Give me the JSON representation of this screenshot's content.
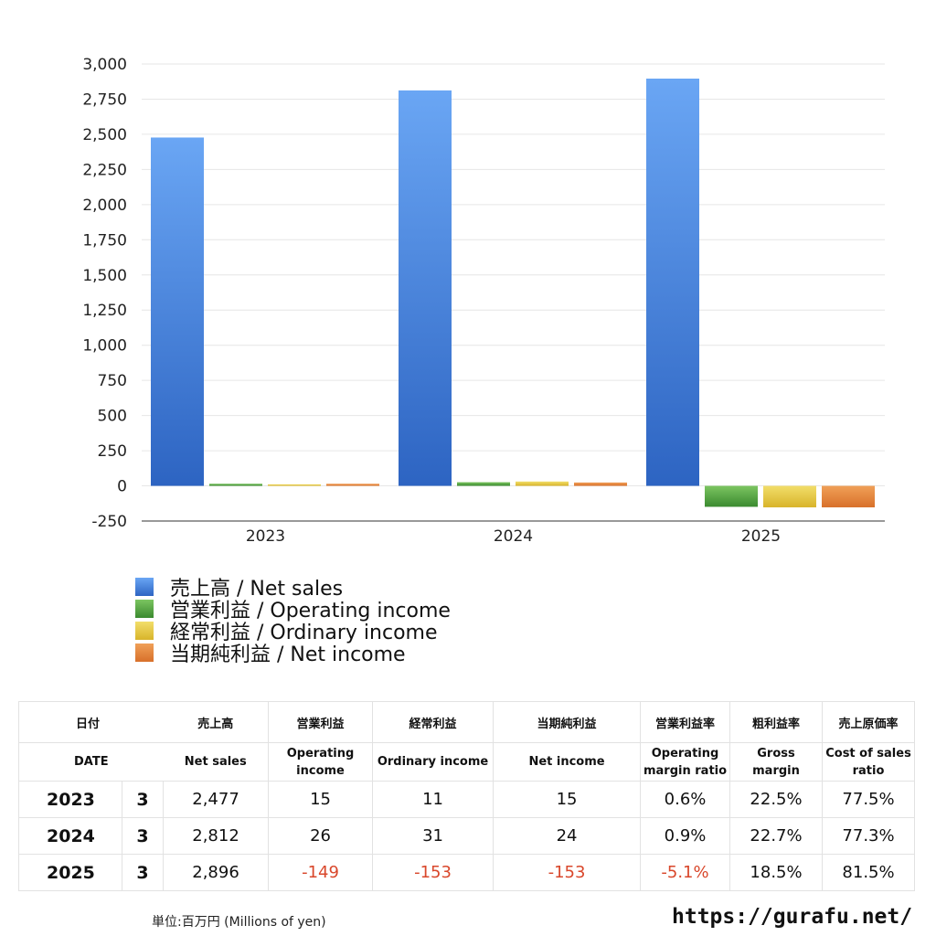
{
  "chart_data": {
    "type": "bar",
    "categories": [
      "2023",
      "2024",
      "2025"
    ],
    "series": [
      {
        "name": "売上高 / Net sales",
        "color": "#3f7fdc",
        "values": [
          2477,
          2812,
          2896
        ]
      },
      {
        "name": "営業利益 / Operating income",
        "color": "#4fa040",
        "values": [
          15,
          26,
          -149
        ]
      },
      {
        "name": "経常利益 / Ordinary income",
        "color": "#e3c53a",
        "values": [
          11,
          31,
          -153
        ]
      },
      {
        "name": "当期純利益 / Net income",
        "color": "#e07f30",
        "values": [
          15,
          24,
          -153
        ]
      }
    ],
    "ylim": [
      -250,
      3000
    ],
    "yticks": [
      "3,000",
      "2,750",
      "2,500",
      "2,250",
      "2,000",
      "1,750",
      "1,500",
      "1,250",
      "1,000",
      "750",
      "500",
      "250",
      "0",
      "-250"
    ],
    "grid": true,
    "legend": "bottom-left"
  },
  "table": {
    "headers_jp": [
      "日付",
      "売上高",
      "営業利益",
      "経常利益",
      "当期純利益",
      "営業利益率",
      "粗利益率",
      "売上原価率"
    ],
    "headers_en": [
      "DATE",
      "Net sales",
      "Operating\nincome",
      "Ordinary income",
      "Net income",
      "Operating\nmargin ratio",
      "Gross\nmargin",
      "Cost of sales\nratio"
    ],
    "rows": [
      {
        "year": "2023",
        "month": "3",
        "net_sales": "2,477",
        "operating": "15",
        "ordinary": "11",
        "net_income": "15",
        "op_margin": "0.6%",
        "gross_margin": "22.5%",
        "cost_ratio": "77.5%"
      },
      {
        "year": "2024",
        "month": "3",
        "net_sales": "2,812",
        "operating": "26",
        "ordinary": "31",
        "net_income": "24",
        "op_margin": "0.9%",
        "gross_margin": "22.7%",
        "cost_ratio": "77.3%"
      },
      {
        "year": "2025",
        "month": "3",
        "net_sales": "2,896",
        "operating": "-149",
        "ordinary": "-153",
        "net_income": "-153",
        "op_margin": "-5.1%",
        "gross_margin": "18.5%",
        "cost_ratio": "81.5%"
      }
    ]
  },
  "footer": {
    "unit": "単位:百万円 (Millions of yen)",
    "site": "https://gurafu.net/"
  }
}
